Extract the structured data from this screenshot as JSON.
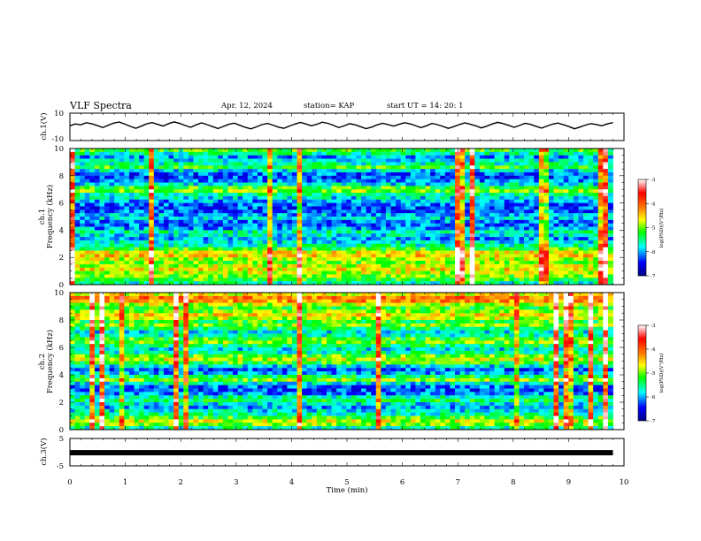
{
  "header": {
    "title": "VLF Spectra",
    "date": "Apr. 12, 2024",
    "station": "station= KAP",
    "start_ut": "start  UT =   14: 20: 1"
  },
  "chart_data": [
    {
      "type": "line",
      "id": "ch1_waveform",
      "ylabel": "ch.1(V)",
      "ylim": [
        -10,
        10
      ],
      "yticks": [
        "10",
        "-10"
      ],
      "xlim": [
        0,
        10
      ],
      "x_end_min": 9.8,
      "values": [
        0.8,
        2.1,
        1.5,
        3.0,
        2.2,
        0.9,
        -0.5,
        1.2,
        2.8,
        3.5,
        2.0,
        0.4,
        -1.0,
        0.5,
        2.2,
        3.1,
        1.8,
        0.6,
        2.4,
        3.6,
        2.5,
        1.0,
        -0.3,
        1.4,
        2.9,
        1.6,
        0.2,
        -1.2,
        0.3,
        1.9,
        2.7,
        1.1,
        -0.4,
        -1.5,
        0.0,
        1.6,
        2.5,
        1.3,
        -0.2,
        -1.0,
        0.6,
        2.0,
        3.2,
        2.1,
        0.8,
        1.9,
        3.4,
        2.6,
        1.2,
        -0.5,
        0.7,
        2.3,
        1.5,
        0.1,
        -1.3,
        -0.2,
        1.4,
        2.6,
        1.7,
        0.5,
        1.8,
        3.0,
        2.2,
        0.9,
        -0.6,
        0.8,
        2.5,
        1.6,
        0.3,
        -1.1,
        0.2,
        1.7,
        2.9,
        1.9,
        0.7,
        -0.8,
        0.5,
        2.1,
        3.3,
        2.4,
        1.1,
        -0.3,
        1.0,
        2.6,
        1.8,
        0.4,
        -0.9,
        0.6,
        2.0,
        2.8,
        1.5,
        0.2,
        -1.4,
        -0.1,
        1.3,
        2.4,
        1.7,
        0.8,
        2.2,
        3.1
      ]
    },
    {
      "type": "heatmap",
      "id": "ch1_spectrogram",
      "ylabel_line1": "ch.1",
      "ylabel_line2": "Frequency (kHz)",
      "ylim": [
        0,
        10
      ],
      "yticks": [
        "0",
        "2",
        "4",
        "6",
        "8",
        "10"
      ],
      "xlim": [
        0,
        10
      ],
      "x_end_min": 9.8,
      "colorbar_label": "log(PSD)(V²/Hz)",
      "colorbar_range": [
        -7,
        -3
      ],
      "colorbar_ticks": [
        "-3",
        "-4",
        "-5",
        "-6",
        "-7"
      ],
      "band_levels": [
        0.35,
        0.45,
        0.5,
        0.55,
        0.6,
        0.55,
        0.5,
        0.55,
        0.62,
        0.58,
        0.45,
        0.35,
        0.3,
        0.25,
        0.3,
        0.35,
        0.25,
        0.2,
        0.22,
        0.28,
        0.25,
        0.2,
        0.18,
        0.2,
        0.25,
        0.3,
        0.35,
        0.5,
        0.45,
        0.3,
        0.22,
        0.18,
        0.2,
        0.3,
        0.45,
        0.35,
        0.3,
        0.25,
        0.35,
        0.45
      ]
    },
    {
      "type": "heatmap",
      "id": "ch2_spectrogram",
      "ylabel_line1": "ch.2",
      "ylabel_line2": "Frequency (kHz)",
      "ylim": [
        0,
        10
      ],
      "yticks": [
        "0",
        "2",
        "4",
        "6",
        "8",
        "10"
      ],
      "xlim": [
        0,
        10
      ],
      "x_end_min": 9.8,
      "colorbar_label": "log(PSD)(V²/Hz)",
      "colorbar_range": [
        -7,
        -3
      ],
      "colorbar_ticks": [
        "-3",
        "-4",
        "-5",
        "-6",
        "-7"
      ],
      "band_levels": [
        0.35,
        0.5,
        0.55,
        0.45,
        0.35,
        0.3,
        0.25,
        0.3,
        0.4,
        0.35,
        0.22,
        0.18,
        0.2,
        0.3,
        0.5,
        0.4,
        0.25,
        0.2,
        0.3,
        0.45,
        0.55,
        0.48,
        0.35,
        0.3,
        0.4,
        0.5,
        0.45,
        0.35,
        0.3,
        0.4,
        0.5,
        0.45,
        0.55,
        0.6,
        0.5,
        0.45,
        0.55,
        0.68,
        0.72,
        0.6
      ]
    },
    {
      "type": "line",
      "id": "ch3_waveform",
      "ylabel": "ch.3(V)",
      "ylim": [
        -5,
        5
      ],
      "yticks": [
        "5",
        "0",
        "-5"
      ],
      "xlim": [
        0,
        10
      ],
      "x_end_min": 9.8,
      "constant_value": -0.2
    }
  ],
  "x_axis": {
    "label": "Time (min)",
    "ticks": [
      "0",
      "1",
      "2",
      "3",
      "4",
      "5",
      "6",
      "7",
      "8",
      "9",
      "10"
    ]
  },
  "colors": {
    "colormap": [
      "#ffffff",
      "#ff0000",
      "#ff8000",
      "#ffff00",
      "#00ff00",
      "#00ffff",
      "#0000ff",
      "#000080"
    ]
  }
}
